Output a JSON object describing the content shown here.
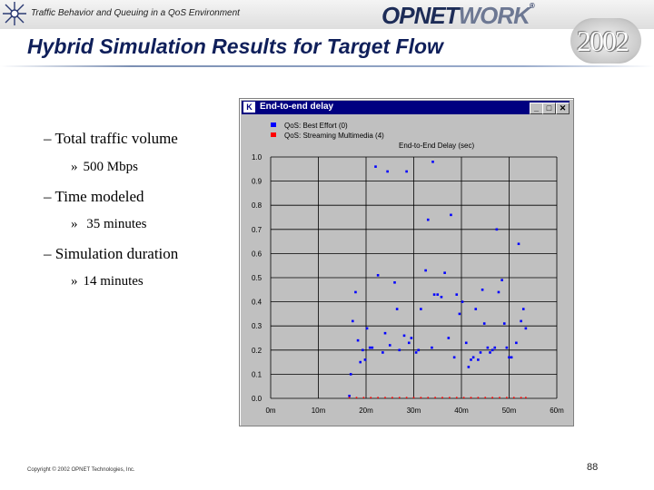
{
  "header": {
    "subtitle": "Traffic Behavior and Queuing in a QoS Environment",
    "logo_main": "OPNET",
    "logo_tail": "WORK",
    "logo_mark": "®",
    "year": "2002"
  },
  "slide": {
    "title": "Hybrid Simulation Results for Target Flow",
    "bullets": [
      {
        "label": "–  Total traffic volume",
        "sub": "500 Mbps"
      },
      {
        "label": "–  Time modeled",
        "sub": " 35 minutes"
      },
      {
        "label": "–  Simulation duration",
        "sub": "14 minutes"
      }
    ],
    "sub_marker": "»"
  },
  "window": {
    "icon": "K",
    "title": "End-to-end delay",
    "buttons": [
      "_",
      "□",
      "✕"
    ]
  },
  "chart_data": {
    "type": "scatter",
    "title": "End-to-End Delay (sec)",
    "legend": [
      {
        "name": "QoS: Best Effort (0)",
        "color": "#0000ff"
      },
      {
        "name": "QoS: Streaming Multimedia (4)",
        "color": "#ff0000"
      }
    ],
    "x_tick_labels": [
      "0m",
      "10m",
      "20m",
      "30m",
      "40m",
      "50m",
      "60m"
    ],
    "y_tick_labels": [
      "0.0",
      "0.1",
      "0.2",
      "0.3",
      "0.4",
      "0.5",
      "0.6",
      "0.7",
      "0.8",
      "0.9",
      "1.0"
    ],
    "xlim": [
      0,
      60
    ],
    "ylim": [
      0,
      1.0
    ],
    "series": [
      {
        "name": "QoS: Best Effort (0)",
        "color": "#0000ff",
        "points": [
          [
            16.5,
            0.01
          ],
          [
            16.8,
            0.1
          ],
          [
            17.2,
            0.32
          ],
          [
            17.8,
            0.44
          ],
          [
            18.3,
            0.24
          ],
          [
            18.8,
            0.15
          ],
          [
            19.3,
            0.2
          ],
          [
            19.8,
            0.16
          ],
          [
            20.2,
            0.29
          ],
          [
            20.8,
            0.21
          ],
          [
            21.3,
            0.21
          ],
          [
            22.0,
            0.96
          ],
          [
            22.5,
            0.51
          ],
          [
            23.5,
            0.19
          ],
          [
            24.0,
            0.27
          ],
          [
            24.5,
            0.94
          ],
          [
            25.0,
            0.22
          ],
          [
            26.0,
            0.48
          ],
          [
            26.5,
            0.37
          ],
          [
            27.0,
            0.2
          ],
          [
            28.0,
            0.26
          ],
          [
            28.5,
            0.94
          ],
          [
            29.0,
            0.23
          ],
          [
            29.5,
            0.25
          ],
          [
            30.5,
            0.19
          ],
          [
            31.0,
            0.2
          ],
          [
            31.5,
            0.37
          ],
          [
            32.5,
            0.53
          ],
          [
            33.0,
            0.74
          ],
          [
            33.8,
            0.21
          ],
          [
            34.0,
            0.98
          ],
          [
            34.3,
            0.43
          ],
          [
            35.0,
            0.43
          ],
          [
            35.8,
            0.42
          ],
          [
            36.5,
            0.52
          ],
          [
            37.3,
            0.25
          ],
          [
            37.8,
            0.76
          ],
          [
            38.5,
            0.17
          ],
          [
            39.0,
            0.43
          ],
          [
            39.6,
            0.35
          ],
          [
            40.2,
            0.4
          ],
          [
            41.0,
            0.23
          ],
          [
            41.5,
            0.13
          ],
          [
            42.0,
            0.16
          ],
          [
            42.5,
            0.17
          ],
          [
            43.0,
            0.37
          ],
          [
            43.5,
            0.16
          ],
          [
            44.0,
            0.19
          ],
          [
            44.4,
            0.45
          ],
          [
            44.8,
            0.31
          ],
          [
            45.5,
            0.21
          ],
          [
            46.0,
            0.19
          ],
          [
            46.5,
            0.2
          ],
          [
            47.0,
            0.21
          ],
          [
            47.4,
            0.7
          ],
          [
            47.8,
            0.44
          ],
          [
            48.5,
            0.49
          ],
          [
            49.0,
            0.31
          ],
          [
            49.5,
            0.21
          ],
          [
            50.0,
            0.17
          ],
          [
            50.5,
            0.17
          ],
          [
            51.5,
            0.23
          ],
          [
            52.0,
            0.64
          ],
          [
            52.5,
            0.32
          ],
          [
            53.0,
            0.37
          ],
          [
            53.5,
            0.29
          ]
        ]
      },
      {
        "name": "QoS: Streaming Multimedia (4)",
        "color": "#ff0000",
        "points": [
          [
            16.5,
            0.003
          ],
          [
            18.0,
            0.003
          ],
          [
            19.5,
            0.003
          ],
          [
            21.0,
            0.003
          ],
          [
            22.5,
            0.003
          ],
          [
            24.0,
            0.003
          ],
          [
            25.5,
            0.003
          ],
          [
            27.0,
            0.003
          ],
          [
            28.5,
            0.003
          ],
          [
            30.0,
            0.003
          ],
          [
            31.5,
            0.003
          ],
          [
            33.0,
            0.003
          ],
          [
            34.5,
            0.003
          ],
          [
            36.0,
            0.003
          ],
          [
            37.5,
            0.003
          ],
          [
            39.0,
            0.003
          ],
          [
            40.5,
            0.003
          ],
          [
            42.0,
            0.003
          ],
          [
            43.5,
            0.003
          ],
          [
            45.0,
            0.003
          ],
          [
            46.5,
            0.003
          ],
          [
            48.0,
            0.003
          ],
          [
            49.5,
            0.003
          ],
          [
            51.0,
            0.003
          ],
          [
            52.5,
            0.003
          ],
          [
            53.5,
            0.003
          ]
        ]
      }
    ]
  },
  "footer": {
    "copyright": "Copyright © 2002 OPNET Technologies, Inc.",
    "page_number": "88"
  }
}
